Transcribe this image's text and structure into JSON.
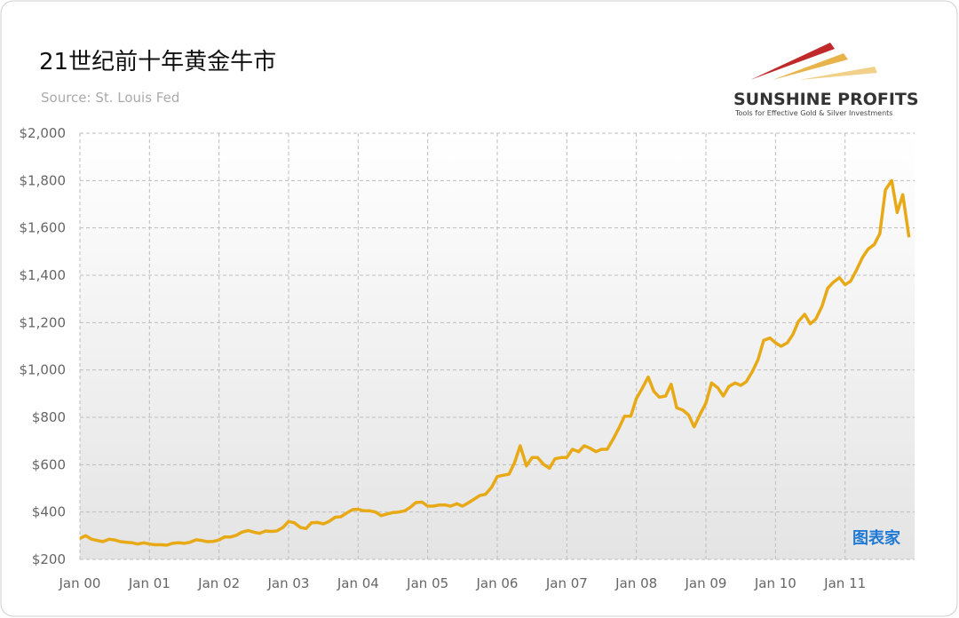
{
  "chart_data": {
    "type": "line",
    "title": "21世纪前十年黄金牛市",
    "subtitle": "Source: St. Louis Fed",
    "logo": "SUNSHINE PROFITS",
    "logo_tagline": "Tools for Effective Gold & Silver Investments",
    "watermark": "图表家",
    "color": "#e8a917",
    "grid": true,
    "xlim": [
      2000,
      2012
    ],
    "ylim": [
      200,
      2000
    ],
    "xticks": [
      {
        "value": 2000,
        "label": "Jan 00"
      },
      {
        "value": 2001,
        "label": "Jan 01"
      },
      {
        "value": 2002,
        "label": "Jan 02"
      },
      {
        "value": 2003,
        "label": "Jan 03"
      },
      {
        "value": 2004,
        "label": "Jan 04"
      },
      {
        "value": 2005,
        "label": "Jan 05"
      },
      {
        "value": 2006,
        "label": "Jan 06"
      },
      {
        "value": 2007,
        "label": "Jan 07"
      },
      {
        "value": 2008,
        "label": "Jan 08"
      },
      {
        "value": 2009,
        "label": "Jan 09"
      },
      {
        "value": 2010,
        "label": "Jan 10"
      },
      {
        "value": 2011,
        "label": "Jan 11"
      }
    ],
    "yticks": [
      {
        "value": 200,
        "label": "$200"
      },
      {
        "value": 400,
        "label": "$400"
      },
      {
        "value": 600,
        "label": "$600"
      },
      {
        "value": 800,
        "label": "$800"
      },
      {
        "value": 1000,
        "label": "$1,000"
      },
      {
        "value": 1200,
        "label": "$1,200"
      },
      {
        "value": 1400,
        "label": "$1,400"
      },
      {
        "value": 1600,
        "label": "$1,600"
      },
      {
        "value": 1800,
        "label": "$1,800"
      },
      {
        "value": 2000,
        "label": "$2,000"
      }
    ],
    "x": [
      2000,
      2000.08,
      2000.17,
      2000.25,
      2000.33,
      2000.42,
      2000.5,
      2000.58,
      2000.67,
      2000.75,
      2000.83,
      2000.92,
      2001,
      2001.08,
      2001.17,
      2001.25,
      2001.33,
      2001.42,
      2001.5,
      2001.58,
      2001.67,
      2001.75,
      2001.83,
      2001.92,
      2002,
      2002.08,
      2002.17,
      2002.25,
      2002.33,
      2002.42,
      2002.5,
      2002.58,
      2002.67,
      2002.75,
      2002.83,
      2002.92,
      2003,
      2003.08,
      2003.17,
      2003.25,
      2003.33,
      2003.42,
      2003.5,
      2003.58,
      2003.67,
      2003.75,
      2003.83,
      2003.92,
      2004,
      2004.08,
      2004.17,
      2004.25,
      2004.33,
      2004.42,
      2004.5,
      2004.58,
      2004.67,
      2004.75,
      2004.83,
      2004.92,
      2005,
      2005.08,
      2005.17,
      2005.25,
      2005.33,
      2005.42,
      2005.5,
      2005.58,
      2005.67,
      2005.75,
      2005.83,
      2005.92,
      2006,
      2006.08,
      2006.17,
      2006.25,
      2006.33,
      2006.42,
      2006.5,
      2006.58,
      2006.67,
      2006.75,
      2006.83,
      2006.92,
      2007,
      2007.08,
      2007.17,
      2007.25,
      2007.33,
      2007.42,
      2007.5,
      2007.58,
      2007.67,
      2007.75,
      2007.83,
      2007.92,
      2008,
      2008.08,
      2008.17,
      2008.25,
      2008.33,
      2008.42,
      2008.5,
      2008.58,
      2008.67,
      2008.75,
      2008.83,
      2008.92,
      2009,
      2009.08,
      2009.17,
      2009.25,
      2009.33,
      2009.42,
      2009.5,
      2009.58,
      2009.67,
      2009.75,
      2009.83,
      2009.92,
      2010,
      2010.08,
      2010.17,
      2010.25,
      2010.33,
      2010.42,
      2010.5,
      2010.58,
      2010.67,
      2010.75,
      2010.83,
      2010.92,
      2011,
      2011.08,
      2011.17,
      2011.25,
      2011.33,
      2011.42,
      2011.5,
      2011.58,
      2011.67,
      2011.75,
      2011.83,
      2011.92
    ],
    "values": [
      288,
      300,
      285,
      280,
      275,
      285,
      282,
      275,
      272,
      270,
      265,
      270,
      265,
      262,
      262,
      260,
      268,
      270,
      268,
      272,
      283,
      280,
      275,
      276,
      282,
      295,
      295,
      302,
      315,
      322,
      315,
      310,
      320,
      318,
      320,
      335,
      360,
      355,
      335,
      330,
      355,
      356,
      350,
      360,
      378,
      380,
      395,
      410,
      412,
      405,
      405,
      400,
      385,
      392,
      398,
      400,
      405,
      420,
      440,
      442,
      425,
      425,
      430,
      430,
      425,
      435,
      425,
      438,
      455,
      470,
      475,
      505,
      550,
      555,
      560,
      610,
      680,
      595,
      630,
      630,
      600,
      585,
      625,
      630,
      630,
      665,
      655,
      680,
      670,
      655,
      665,
      665,
      710,
      755,
      805,
      805,
      880,
      920,
      970,
      910,
      885,
      890,
      940,
      840,
      830,
      810,
      760,
      815,
      860,
      945,
      925,
      890,
      930,
      945,
      935,
      950,
      995,
      1045,
      1125,
      1135,
      1115,
      1100,
      1115,
      1150,
      1205,
      1235,
      1195,
      1215,
      1270,
      1345,
      1370,
      1390,
      1360,
      1375,
      1425,
      1475,
      1510,
      1530,
      1575,
      1760,
      1800,
      1665,
      1740,
      1560
    ]
  }
}
